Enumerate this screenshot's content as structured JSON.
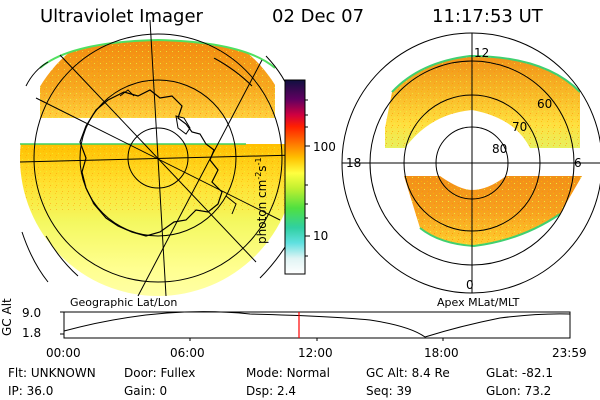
{
  "header": {
    "instrument": "Ultraviolet Imager",
    "date": "02 Dec 07",
    "time": "11:17:53 UT"
  },
  "colors": {
    "background": "#ffffff",
    "text": "#000000",
    "marker": "#ff0000"
  },
  "left_map": {
    "label": "Geographic Lat/Lon",
    "icon": "geographic-map-icon"
  },
  "right_map": {
    "label": "Apex MLat/MLT",
    "icon": "polar-plot-icon",
    "mlt_labels": {
      "top": "12",
      "left": "18",
      "right": "6",
      "bottom": "0"
    },
    "mlat_labels": [
      "60",
      "70",
      "80"
    ]
  },
  "colorbar": {
    "unit_label": "photon cm",
    "unit_sup1": "-2",
    "unit_mid": "s",
    "unit_sup2": "-1",
    "ticks": [
      "100",
      "10"
    ]
  },
  "altitude_plot": {
    "y_label": "GC Alt",
    "y_ticks": [
      "9.0",
      "1.8"
    ],
    "x_ticks": [
      "00:00",
      "06:00",
      "12:00",
      "18:00",
      "23:59"
    ],
    "current_time_marker": "11:17:53"
  },
  "info": {
    "row1": [
      {
        "label": "Flt:",
        "value": "UNKNOWN"
      },
      {
        "label": "Door:",
        "value": "Fullex"
      },
      {
        "label": "Mode:",
        "value": "Normal"
      },
      {
        "label": "GC Alt:",
        "value": "8.4 Re"
      },
      {
        "label": "GLat:",
        "value": "-82.1"
      }
    ],
    "row2": [
      {
        "label": "IP:",
        "value": "36.0"
      },
      {
        "label": "Gain:",
        "value": "0"
      },
      {
        "label": "Dsp:",
        "value": "2.4"
      },
      {
        "label": "Seq:",
        "value": "39"
      },
      {
        "label": "GLon:",
        "value": "73.2"
      }
    ]
  }
}
